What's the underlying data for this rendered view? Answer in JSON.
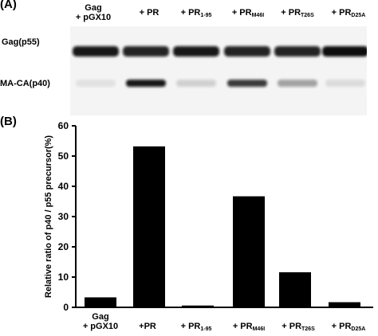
{
  "panel_a": {
    "label": "(A)",
    "lanes": [
      {
        "line1": "Gag",
        "line2": "+ pGX10"
      },
      {
        "base": "+ PR",
        "sub": ""
      },
      {
        "base": "+ PR",
        "sub": "1-95"
      },
      {
        "base": "+ PR",
        "sub": "M46I"
      },
      {
        "base": "+ PR",
        "sub": "T26S"
      },
      {
        "base": "+ PR",
        "sub": "D25A"
      }
    ],
    "row_labels": {
      "p55": "Gag(p55)",
      "p40": "MA-CA(p40)"
    },
    "band_intensity": {
      "p55": [
        0.95,
        0.9,
        0.95,
        0.9,
        0.9,
        1.0
      ],
      "p40": [
        0.08,
        0.95,
        0.15,
        0.8,
        0.35,
        0.1
      ]
    },
    "colors": {
      "band": "#111111",
      "blot_bg": "#f4f4f4"
    }
  },
  "panel_b": {
    "label": "(B)",
    "x_labels": [
      {
        "line1": "Gag",
        "line2": "+ pGX10",
        "base": "",
        "sub": ""
      },
      {
        "line1": "",
        "line2": "",
        "base": "+PR",
        "sub": ""
      },
      {
        "line1": "",
        "line2": "",
        "base": "+ PR",
        "sub": "1-95"
      },
      {
        "line1": "",
        "line2": "",
        "base": "+ PR",
        "sub": "M46I"
      },
      {
        "line1": "",
        "line2": "",
        "base": "+ PR",
        "sub": "T26S"
      },
      {
        "line1": "",
        "line2": "",
        "base": "+ PR",
        "sub": "D25A"
      }
    ]
  },
  "chart_data": {
    "type": "bar",
    "categories": [
      "Gag + pGX10",
      "+PR",
      "+ PR1-95",
      "+ PRM46I",
      "+ PRT26S",
      "+ PRD25A"
    ],
    "values": [
      3.3,
      53.2,
      0.6,
      36.7,
      11.6,
      1.7
    ],
    "ylabel": "Relative ratio of p40 / p55 precursor(%)",
    "xlabel": "",
    "ylim": [
      0,
      60
    ],
    "yticks": [
      0,
      10,
      20,
      30,
      40,
      50,
      60
    ],
    "grid": false,
    "bar_color": "#000000"
  }
}
